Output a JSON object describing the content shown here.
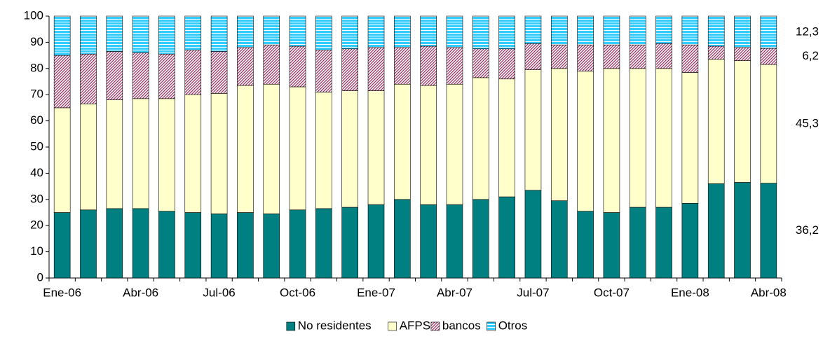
{
  "chart_data": {
    "type": "stacked_bar",
    "categories": [
      "Ene-06",
      null,
      null,
      "Abr-06",
      null,
      null,
      "Jul-06",
      null,
      null,
      "Oct-06",
      null,
      null,
      "Ene-07",
      null,
      null,
      "Abr-07",
      null,
      null,
      "Jul-07",
      null,
      null,
      "Oct-07",
      null,
      null,
      "Ene-08",
      null,
      null,
      "Abr-08"
    ],
    "series": [
      {
        "name": "No residentes",
        "color": "#008080",
        "pattern": "solid",
        "values": [
          25,
          26,
          26.5,
          26.5,
          25.5,
          25,
          24.5,
          25,
          24.5,
          26,
          26.5,
          27,
          28,
          30,
          28,
          28,
          30,
          31,
          33.5,
          29.5,
          25.5,
          25,
          27,
          27,
          28.5,
          36,
          36.5,
          36.2
        ],
        "value_labels": [
          null,
          null,
          null,
          null,
          null,
          null,
          null,
          null,
          null,
          null,
          null,
          null,
          null,
          null,
          null,
          null,
          null,
          null,
          null,
          null,
          null,
          null,
          null,
          null,
          null,
          null,
          null,
          "36,2"
        ]
      },
      {
        "name": "AFPS",
        "color": "#FFFFCC",
        "pattern": "solid",
        "values": [
          40,
          40.5,
          41.5,
          42,
          43,
          45,
          46,
          48.5,
          49.5,
          47,
          44.5,
          44.5,
          43.5,
          44,
          45.5,
          46,
          46.5,
          45,
          46,
          50.5,
          53.5,
          55,
          53,
          53,
          50,
          47.5,
          46.5,
          45.3
        ],
        "value_labels": [
          null,
          null,
          null,
          null,
          null,
          null,
          null,
          null,
          null,
          null,
          null,
          null,
          null,
          null,
          null,
          null,
          null,
          null,
          null,
          null,
          null,
          null,
          null,
          null,
          null,
          null,
          null,
          "45,3"
        ]
      },
      {
        "name": "bancos",
        "color": "#993366",
        "pattern": "diagonal",
        "values": [
          20,
          19,
          18.5,
          17.5,
          17,
          17,
          16,
          14.5,
          15,
          15.5,
          16,
          16,
          16.5,
          14,
          15,
          14,
          11,
          11.5,
          10,
          9,
          10,
          9,
          9,
          9.5,
          10.5,
          5,
          5,
          6.2
        ],
        "value_labels": [
          null,
          null,
          null,
          null,
          null,
          null,
          null,
          null,
          null,
          null,
          null,
          null,
          null,
          null,
          null,
          null,
          null,
          null,
          null,
          null,
          null,
          null,
          null,
          null,
          null,
          null,
          null,
          "6,2"
        ]
      },
      {
        "name": "Otros",
        "color": "#33CCFF",
        "pattern": "horizontal",
        "values": [
          15,
          14.5,
          13.5,
          14,
          14.5,
          13,
          13.5,
          12,
          11,
          11.5,
          13,
          12.5,
          12,
          12,
          11.5,
          12,
          12.5,
          12.5,
          10.5,
          11,
          11,
          11,
          11,
          10.5,
          11,
          11.5,
          12,
          12.3
        ],
        "value_labels": [
          null,
          null,
          null,
          null,
          null,
          null,
          null,
          null,
          null,
          null,
          null,
          null,
          null,
          null,
          null,
          null,
          null,
          null,
          null,
          null,
          null,
          null,
          null,
          null,
          null,
          null,
          null,
          "12,3"
        ]
      }
    ],
    "ylim": [
      0,
      100
    ],
    "yticks": [
      0,
      10,
      20,
      30,
      40,
      50,
      60,
      70,
      80,
      90,
      100
    ],
    "legend": "bottom"
  }
}
